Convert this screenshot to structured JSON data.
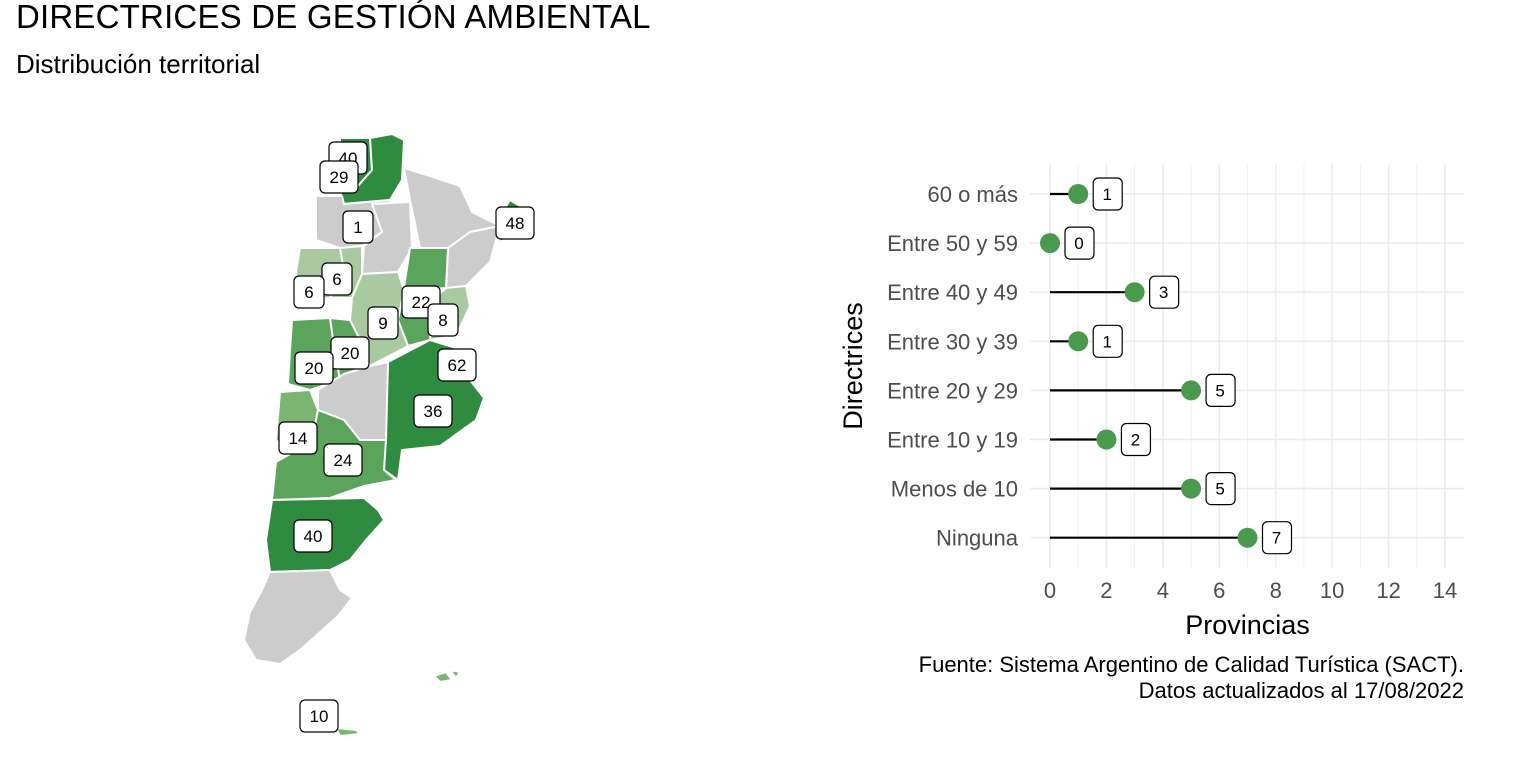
{
  "header": {
    "title": "DIRECTRICES DE GESTIÓN AMBIENTAL",
    "subtitle": "Distribución territorial"
  },
  "map": {
    "labels": [
      "40",
      "29",
      "1",
      "48",
      "6",
      "6",
      "22",
      "9",
      "8",
      "20",
      "62",
      "20",
      "36",
      "14",
      "24",
      "40",
      "10"
    ]
  },
  "chart_data": {
    "type": "lollipop",
    "categories": [
      "60 o más",
      "Entre 50 y 59",
      "Entre 40 y 49",
      "Entre 30 y 39",
      "Entre 20 y 29",
      "Entre 10 y 19",
      "Menos de 10",
      "Ninguna"
    ],
    "values": [
      1,
      0,
      3,
      1,
      5,
      2,
      5,
      7
    ],
    "xlabel": "Provincias",
    "ylabel": "Directrices",
    "xlim": [
      0,
      14
    ],
    "xticks": [
      0,
      2,
      4,
      6,
      8,
      10,
      12,
      14
    ],
    "grid": true,
    "point_color": "#4a9a4e"
  },
  "caption": {
    "line1": "Fuente: Sistema Argentino de Calidad Turística (SACT).",
    "line2": "Datos actualizados al 17/08/2022"
  },
  "colors": {
    "gray": "#cccccc",
    "light_green": "#a9c9a0",
    "mid_green": "#7cb472",
    "green": "#5ba45b",
    "dark_green": "#2e8b40"
  }
}
